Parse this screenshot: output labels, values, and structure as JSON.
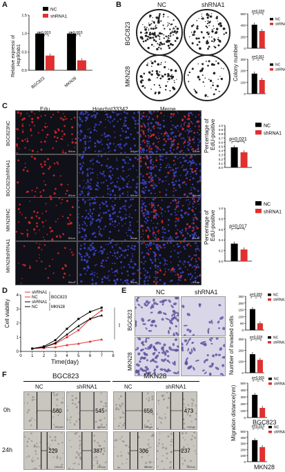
{
  "panels": {
    "a": "A",
    "b": "B",
    "c": "C",
    "d": "D",
    "e": "E",
    "f": "F"
  },
  "legend": {
    "nc": "NC",
    "shrna1": "shRNA1"
  },
  "panelA": {
    "ylabel_line1": "Relative expressi of",
    "ylabel_line2": "Hsp90ab1",
    "pvals": [
      "p=0.003",
      "p=0.003"
    ],
    "sig": [
      "**",
      "**"
    ],
    "xlabels": [
      "BGC823",
      "MKN28"
    ]
  },
  "panelB": {
    "col_headers": [
      "NC",
      "shRNA1"
    ],
    "row_labels": [
      "BGC823",
      "MKN28"
    ],
    "ylabel": "Colony number",
    "pvals": [
      "p=0.039",
      "p=0.001"
    ],
    "sig": [
      "*",
      "**"
    ]
  },
  "panelC": {
    "col_headers": [
      "Edu",
      "Hoechst33342",
      "Merge"
    ],
    "row_labels": [
      "BGC823NC",
      "BGC823shRNA1",
      "MKN28NC",
      "MKN28shRNA1"
    ],
    "scale": "50um",
    "ylabel_line1": "Percentage of",
    "ylabel_line2": "EdU-positive",
    "pvals": [
      "p=0.021",
      "p=0.017"
    ],
    "sig": [
      "*",
      "*"
    ]
  },
  "panelD": {
    "ylabel": "Cell viability",
    "xlabel": "Time(day)",
    "legend_items": [
      "shRNA1",
      "NC",
      "shRNA1",
      "NC"
    ],
    "group_labels": [
      "BGC823",
      "MKN28"
    ],
    "sig": "***"
  },
  "panelE": {
    "col_headers": [
      "NC",
      "shRNA1"
    ],
    "row_labels": [
      "BGC823",
      "MKN28"
    ],
    "scale": "50um",
    "ylabel": "Number of invaded cells",
    "pvals": [
      "p=0.005",
      "p=0.028"
    ],
    "sig": [
      "**",
      "*"
    ]
  },
  "panelF": {
    "group_headers": [
      "BGC823",
      "MKN28"
    ],
    "col_headers": [
      "NC",
      "shRNA1",
      "NC",
      "shRNA1"
    ],
    "row_labels": [
      "0h",
      "24h"
    ],
    "wound_values_0h": [
      "560",
      "545",
      "656",
      "473"
    ],
    "wound_values_24h": [
      "229",
      "387",
      "306",
      "237"
    ],
    "scale": "100um",
    "ylabel": "Migration distance(nm)",
    "chart_titles": [
      "BGC823",
      "MKN28"
    ],
    "pvals": [
      "p=0.005",
      "p=0.013"
    ],
    "sig": [
      "**",
      "*"
    ]
  },
  "chart_data": [
    {
      "type": "bar",
      "id": "A",
      "categories": [
        "BGC823",
        "MKN28"
      ],
      "series": [
        {
          "name": "NC",
          "values": [
            1.0,
            1.0
          ]
        },
        {
          "name": "shRNA1",
          "values": [
            0.4,
            0.27
          ]
        }
      ],
      "ylabel": "Relative expressi of Hsp90ab1",
      "ylim": [
        0,
        1.5
      ],
      "yticks": [
        "0.0",
        "0.5",
        "1.0",
        "1.5"
      ],
      "colors": {
        "NC": "#000000",
        "shRNA1": "#e03030"
      }
    },
    {
      "type": "bar",
      "id": "B-BGC823",
      "categories": [
        "NC",
        "shRNA1"
      ],
      "values": [
        410,
        300
      ],
      "ylim": [
        0,
        600
      ],
      "yticks": [
        "0",
        "200",
        "400",
        "600"
      ],
      "legend": "top-right"
    },
    {
      "type": "bar",
      "id": "B-MKN28",
      "categories": [
        "NC",
        "shRNA1"
      ],
      "values": [
        175,
        120
      ],
      "ylim": [
        0,
        300
      ],
      "yticks": [
        "0",
        "100",
        "200",
        "300"
      ],
      "legend": "top-right"
    },
    {
      "type": "bar",
      "id": "C-BGC823",
      "categories": [
        "NC",
        "shRNA1"
      ],
      "values": [
        0.48,
        0.36
      ],
      "ylim": [
        0,
        1.0
      ],
      "yticks": [
        "0.0",
        "0.1",
        "0.2",
        "0.3",
        "0.4",
        "0.5",
        "0.6",
        "0.7",
        "0.8",
        "0.9",
        "1.0"
      ]
    },
    {
      "type": "bar",
      "id": "C-MKN28",
      "categories": [
        "NC",
        "shRNA1"
      ],
      "values": [
        0.33,
        0.22
      ],
      "ylim": [
        0,
        1.0
      ],
      "yticks": [
        "0.0",
        "0.2",
        "0.4",
        "0.6",
        "0.8",
        "1.0"
      ]
    },
    {
      "type": "line",
      "id": "D",
      "x": [
        1,
        2,
        3,
        4,
        5,
        6,
        7
      ],
      "xlim": [
        0,
        8
      ],
      "xticks": [
        "0",
        "1",
        "2",
        "3",
        "4",
        "5",
        "6",
        "7",
        "8"
      ],
      "ylim": [
        0,
        4
      ],
      "yticks": [
        "0",
        "1",
        "2",
        "3",
        "4"
      ],
      "xlabel": "Time(day)",
      "ylabel": "Cell viability",
      "series": [
        {
          "name": "shRNA1",
          "values": [
            0.2,
            0.25,
            0.3,
            0.45,
            0.55,
            0.7,
            0.85
          ],
          "color": "#e03030"
        },
        {
          "name": "NC",
          "values": [
            0.2,
            0.3,
            0.55,
            1.0,
            1.5,
            2.3,
            2.9
          ],
          "color": "#e03030"
        },
        {
          "name": "shRNA1",
          "values": [
            0.2,
            0.3,
            0.6,
            1.2,
            1.8,
            2.3,
            2.55
          ],
          "color": "#000000"
        },
        {
          "name": "NC",
          "values": [
            0.2,
            0.35,
            0.8,
            1.6,
            2.3,
            2.8,
            3.1
          ],
          "color": "#000000"
        }
      ]
    },
    {
      "type": "bar",
      "id": "E-BGC823",
      "categories": [
        "NC",
        "shRNA1"
      ],
      "values": [
        155,
        50
      ],
      "ylim": [
        0,
        250
      ],
      "yticks": [
        "0",
        "50",
        "100",
        "150",
        "200",
        "250"
      ]
    },
    {
      "type": "bar",
      "id": "E-MKN28",
      "categories": [
        "NC",
        "shRNA1"
      ],
      "values": [
        165,
        115
      ],
      "ylim": [
        0,
        300
      ],
      "yticks": [
        "0",
        "100",
        "200",
        "300"
      ]
    },
    {
      "type": "bar",
      "id": "F-BGC823",
      "title": "BGC823",
      "categories": [
        "NC",
        "shRNA1"
      ],
      "values": [
        330,
        140
      ],
      "ylim": [
        0,
        500
      ],
      "yticks": [
        "0",
        "100",
        "200",
        "300",
        "400",
        "500"
      ]
    },
    {
      "type": "bar",
      "id": "F-MKN28",
      "title": "MKN28",
      "categories": [
        "NC",
        "shRNA1"
      ],
      "values": [
        355,
        240
      ],
      "ylim": [
        0,
        500
      ],
      "yticks": [
        "0",
        "100",
        "200",
        "300",
        "400",
        "500"
      ]
    }
  ]
}
